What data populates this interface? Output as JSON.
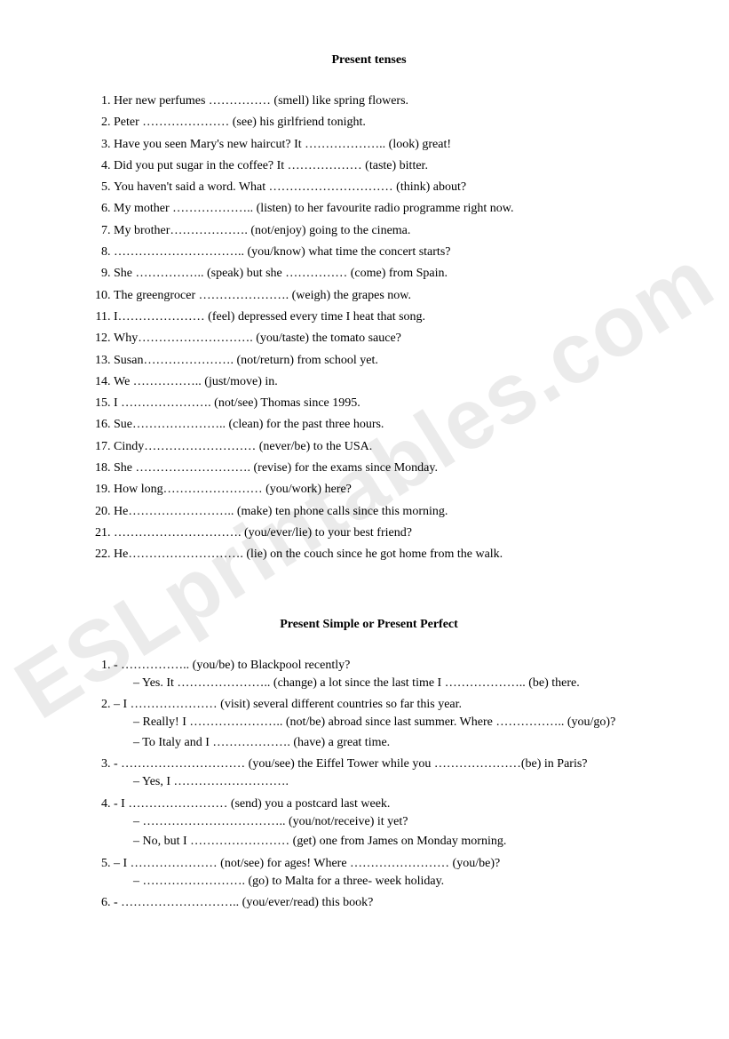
{
  "document": {
    "title_fontsize": 14,
    "body_fontsize": 14,
    "font_family": "Times New Roman",
    "text_color": "#000000",
    "background_color": "#ffffff",
    "watermark_text": "ESLprintables.com",
    "watermark_color": "rgba(0,0,0,0.08)",
    "watermark_fontsize": 96,
    "watermark_rotation_deg": -32
  },
  "section1": {
    "title": "Present tenses",
    "items": [
      "Her new perfumes …………… (smell) like spring flowers.",
      "Peter ………………… (see) his girlfriend tonight.",
      "Have you seen Mary's new haircut? It ……………….. (look) great!",
      "Did you put sugar in the coffee? It ……………… (taste) bitter.",
      "You haven't said a word. What ………………………… (think) about?",
      "My mother ……………….. (listen) to her favourite radio programme right now.",
      "My brother………………. (not/enjoy) going to the cinema.",
      "………………………….. (you/know) what time the concert starts?",
      "She …………….. (speak) but she …………… (come) from Spain.",
      "The greengrocer …………………. (weigh) the grapes now.",
      "I………………… (feel) depressed every time I heat that song.",
      "Why………………………. (you/taste) the tomato sauce?",
      "Susan…………………. (not/return) from school yet.",
      "We …………….. (just/move) in.",
      "I …………………. (not/see) Thomas since 1995.",
      "Sue………………….. (clean) for the past three hours.",
      "Cindy……………………… (never/be) to the USA.",
      "She ………………………. (revise) for the exams since Monday.",
      "How long…………………… (you/work) here?",
      "He…………………….. (make) ten phone calls since this morning.",
      "…………………………. (you/ever/lie) to your best friend?",
      "He………………………. (lie) on the couch since he got home from the walk."
    ]
  },
  "section2": {
    "title": "Present  Simple or Present Perfect",
    "items": [
      {
        "main": "- …………….. (you/be) to Blackpool recently?",
        "sub": [
          "Yes. It ………………….. (change) a lot since the last  time I ……………….. (be) there."
        ]
      },
      {
        "main": "– I ………………… (visit) several different countries so far this year.",
        "sub": [
          "Really! I ………………….. (not/be) abroad since last summer. Where …………….. (you/go)?",
          "To Italy and I ………………. (have) a great time."
        ]
      },
      {
        "main": "- ………………………… (you/see) the Eiffel Tower while you …………………(be) in Paris?",
        "sub": [
          "Yes, I ………………………."
        ]
      },
      {
        "main": "- I …………………… (send) you a postcard last week.",
        "sub": [
          "…………………………….. (you/not/receive) it yet?",
          "No, but I …………………… (get) one from James on Monday morning."
        ]
      },
      {
        "main": "– I ………………… (not/see) for ages! Where …………………… (you/be)?",
        "sub": [
          "……………………. (go) to Malta for a three- week holiday."
        ]
      },
      {
        "main": "- ……………………….. (you/ever/read) this book?",
        "sub": []
      }
    ]
  }
}
